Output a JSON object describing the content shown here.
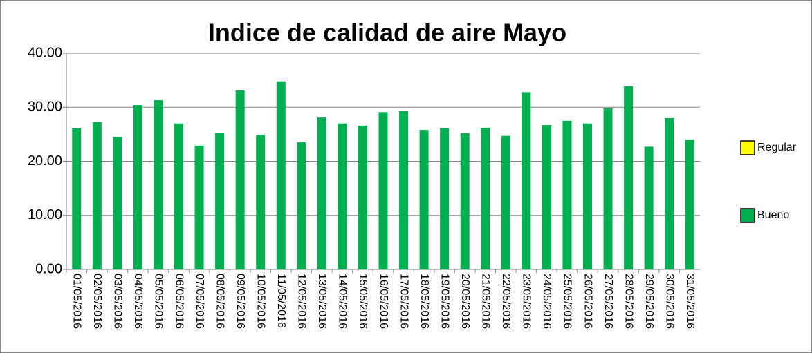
{
  "chart_data": {
    "type": "bar",
    "title": "Indice de calidad de aire Mayo",
    "categories": [
      "01/05/2016",
      "02/05/2016",
      "03/05/2016",
      "04/05/2016",
      "05/05/2016",
      "06/05/2016",
      "07/05/2016",
      "08/05/2016",
      "09/05/2016",
      "10/05/2016",
      "11/05/2016",
      "12/05/2016",
      "13/05/2016",
      "14/05/2016",
      "15/05/2016",
      "16/05/2016",
      "17/05/2016",
      "18/05/2016",
      "19/05/2016",
      "20/05/2016",
      "21/05/2016",
      "22/05/2016",
      "23/05/2016",
      "24/05/2016",
      "25/05/2016",
      "26/05/2016",
      "27/05/2016",
      "28/05/2016",
      "29/05/2016",
      "30/05/2016",
      "31/05/2016"
    ],
    "series": [
      {
        "name": "Regular",
        "color": "#ffff00",
        "values": [
          null,
          null,
          null,
          null,
          null,
          null,
          null,
          null,
          null,
          null,
          null,
          null,
          null,
          null,
          null,
          null,
          null,
          null,
          null,
          null,
          null,
          null,
          null,
          null,
          null,
          null,
          null,
          null,
          null,
          null,
          null
        ]
      },
      {
        "name": "Bueno",
        "color": "#00b050",
        "values": [
          26.1,
          27.3,
          24.5,
          30.4,
          31.3,
          27.0,
          22.9,
          25.3,
          33.1,
          24.9,
          34.8,
          23.5,
          28.1,
          27.0,
          26.6,
          29.1,
          29.3,
          25.8,
          26.1,
          25.2,
          26.2,
          24.7,
          32.8,
          26.7,
          27.5,
          27.0,
          29.8,
          33.9,
          22.7,
          28.0,
          24.0
        ]
      }
    ],
    "ylim": [
      0,
      40
    ],
    "yticks": [
      {
        "value": 0,
        "label": "0.00"
      },
      {
        "value": 10,
        "label": "10.00"
      },
      {
        "value": 20,
        "label": "20.00"
      },
      {
        "value": 30,
        "label": "30.00"
      },
      {
        "value": 40,
        "label": "40.00"
      }
    ],
    "grid": true,
    "legend": "right"
  }
}
